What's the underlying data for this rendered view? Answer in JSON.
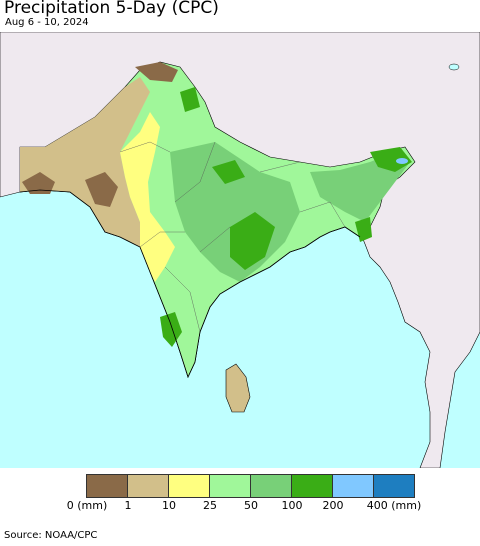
{
  "title": "Precipitation 5-Day (CPC)",
  "subtitle": "Aug 6 - 10, 2024",
  "source": "Source: NOAA/CPC",
  "legend": {
    "colors": [
      "#8a6a48",
      "#d2bf8a",
      "#ffff80",
      "#a0f79a",
      "#78d078",
      "#3aad16",
      "#80c8ff",
      "#1e7ec0"
    ],
    "labels": [
      "0 (mm)",
      "1",
      "10",
      "25",
      "50",
      "100",
      "200",
      "400 (mm)"
    ]
  },
  "map_colors": {
    "ocean": "#bfffff",
    "land_outside": "#efe9ef",
    "border": "#000000"
  }
}
